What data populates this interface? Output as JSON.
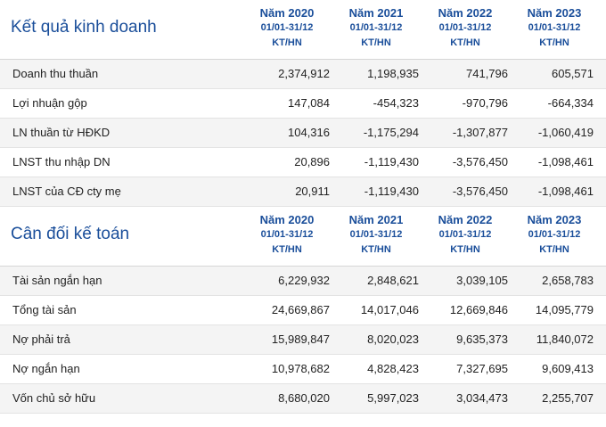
{
  "s1": {
    "title": "Kết quả kinh doanh",
    "cols": [
      {
        "year": "Năm 2020",
        "range": "01/01-31/12",
        "unit": "KT/HN"
      },
      {
        "year": "Năm 2021",
        "range": "01/01-31/12",
        "unit": "KT/HN"
      },
      {
        "year": "Năm 2022",
        "range": "01/01-31/12",
        "unit": "KT/HN"
      },
      {
        "year": "Năm 2023",
        "range": "01/01-31/12",
        "unit": "KT/HN"
      }
    ],
    "rows": [
      {
        "label": "Doanh thu thuần",
        "v": [
          "2,374,912",
          "1,198,935",
          "741,796",
          "605,571"
        ]
      },
      {
        "label": "Lợi nhuận gộp",
        "v": [
          "147,084",
          "-454,323",
          "-970,796",
          "-664,334"
        ]
      },
      {
        "label": "LN thuần từ HĐKD",
        "v": [
          "104,316",
          "-1,175,294",
          "-1,307,877",
          "-1,060,419"
        ]
      },
      {
        "label": "LNST thu nhập DN",
        "v": [
          "20,896",
          "-1,119,430",
          "-3,576,450",
          "-1,098,461"
        ]
      },
      {
        "label": "LNST của CĐ cty mẹ",
        "v": [
          "20,911",
          "-1,119,430",
          "-3,576,450",
          "-1,098,461"
        ]
      }
    ]
  },
  "s2": {
    "title": "Cân đối kế toán",
    "cols": [
      {
        "year": "Năm 2020",
        "range": "01/01-31/12",
        "unit": "KT/HN"
      },
      {
        "year": "Năm 2021",
        "range": "01/01-31/12",
        "unit": "KT/HN"
      },
      {
        "year": "Năm 2022",
        "range": "01/01-31/12",
        "unit": "KT/HN"
      },
      {
        "year": "Năm 2023",
        "range": "01/01-31/12",
        "unit": "KT/HN"
      }
    ],
    "rows": [
      {
        "label": "Tài sản ngắn hạn",
        "v": [
          "6,229,932",
          "2,848,621",
          "3,039,105",
          "2,658,783"
        ]
      },
      {
        "label": "Tổng tài sản",
        "v": [
          "24,669,867",
          "14,017,046",
          "12,669,846",
          "14,095,779"
        ]
      },
      {
        "label": "Nợ phải trả",
        "v": [
          "15,989,847",
          "8,020,023",
          "9,635,373",
          "11,840,072"
        ]
      },
      {
        "label": "Nợ ngắn hạn",
        "v": [
          "10,978,682",
          "4,828,423",
          "7,327,695",
          "9,609,413"
        ]
      },
      {
        "label": "Vốn chủ sở hữu",
        "v": [
          "8,680,020",
          "5,997,023",
          "3,034,473",
          "2,255,707"
        ]
      }
    ]
  }
}
